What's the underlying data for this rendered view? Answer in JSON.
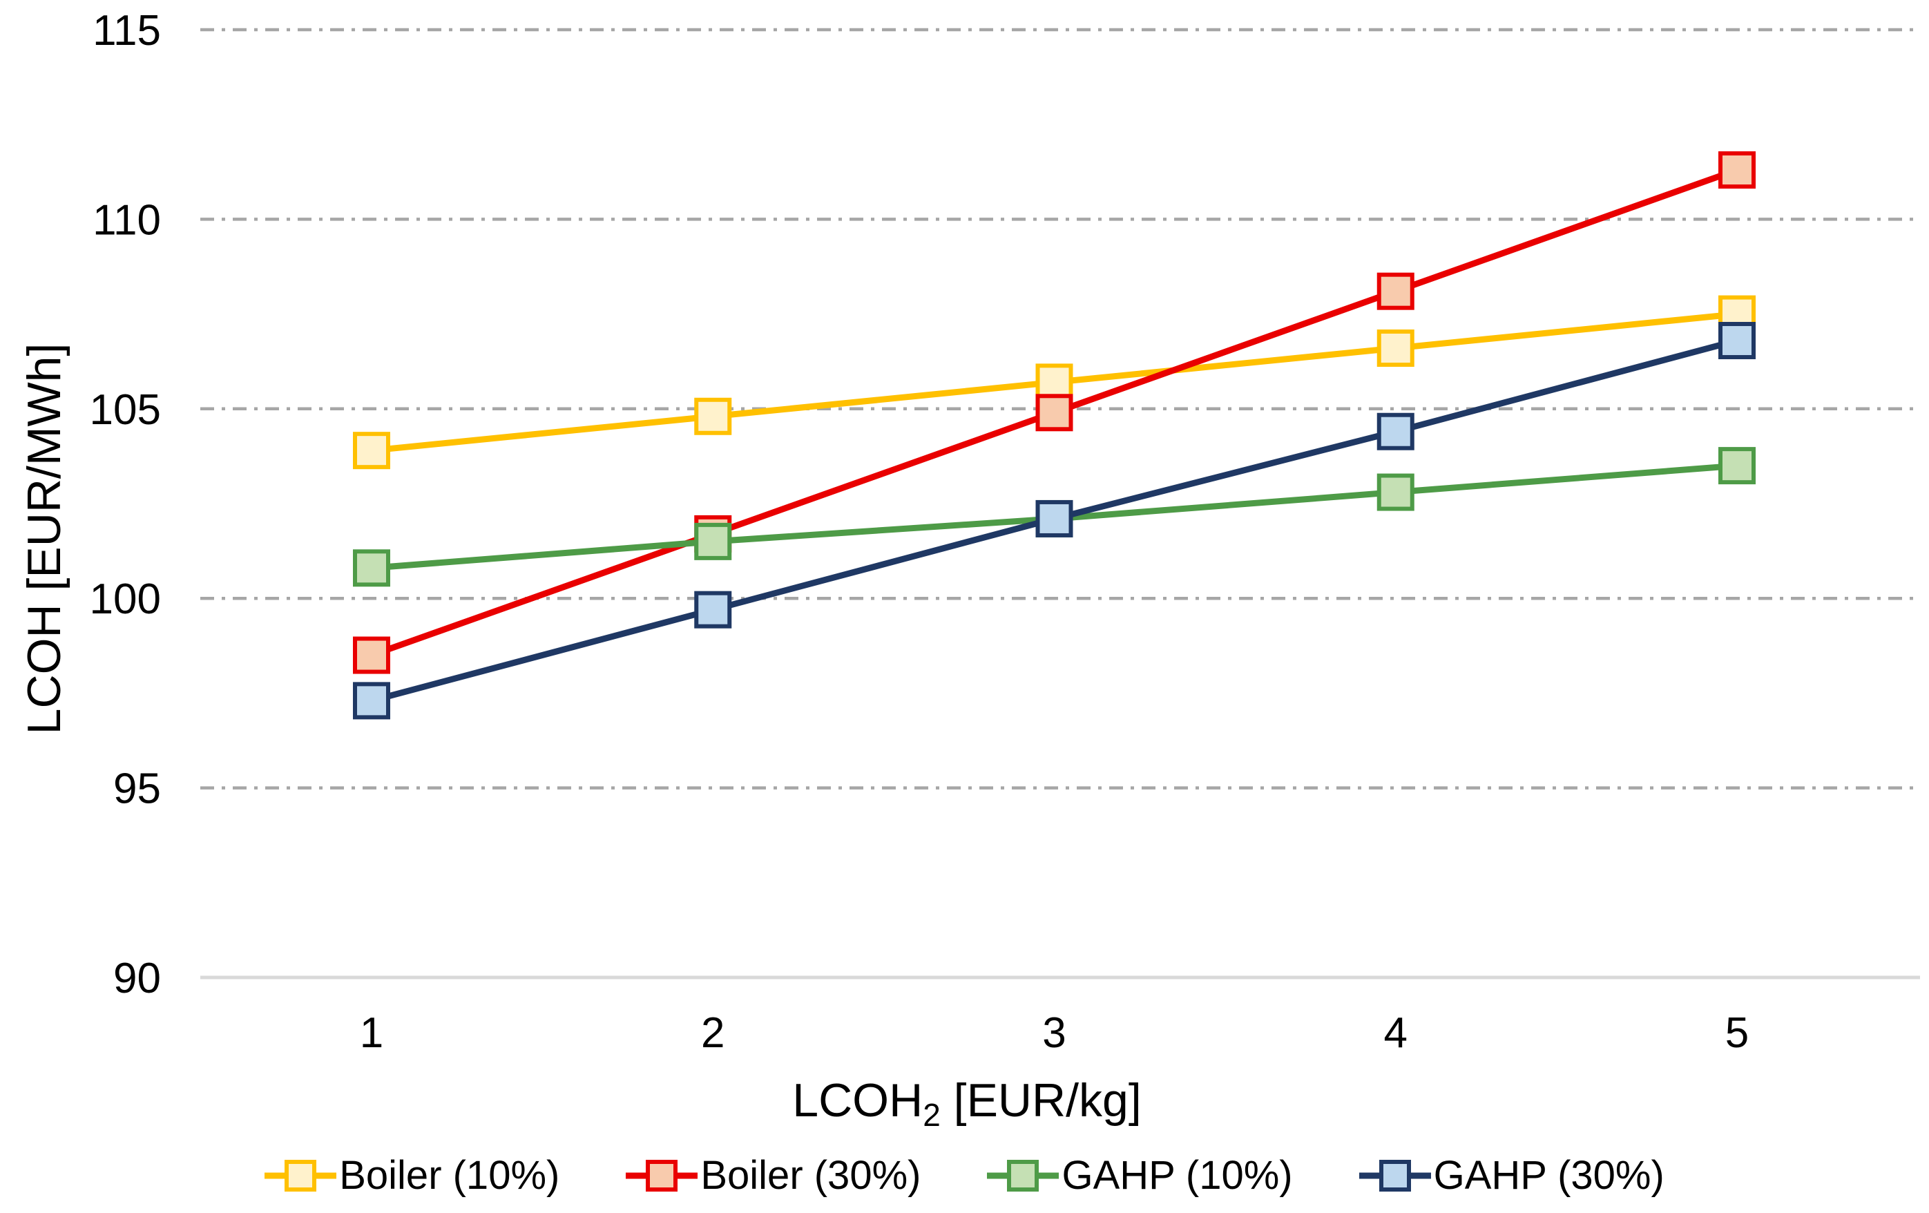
{
  "chart_data": {
    "type": "line",
    "title": "",
    "xlabel_main": "LCOH",
    "xlabel_sub": "2",
    "xlabel_rest": " [EUR/kg]",
    "ylabel": "LCOH [EUR/MWh]",
    "x": [
      1,
      2,
      3,
      4,
      5
    ],
    "xticks": [
      1,
      2,
      3,
      4,
      5
    ],
    "yticks": [
      90,
      95,
      100,
      105,
      110,
      115
    ],
    "ylim": [
      90,
      115
    ],
    "xlim_categories": [
      1,
      5
    ],
    "grid": "horizontal dash-dot gridlines at every 5 EUR/MWh",
    "legend_position": "bottom",
    "gridline_color": "#A6A6A6",
    "axis_line_color": "#D9D9D9",
    "background_color": "#FFFFFF",
    "marker_shape": "square",
    "series": [
      {
        "name": "Boiler (10%)",
        "line_color": "#FFC000",
        "marker_fill": "#FFF2CC",
        "values": [
          103.9,
          104.8,
          105.7,
          106.6,
          107.5
        ]
      },
      {
        "name": "Boiler (30%)",
        "line_color": "#E90000",
        "marker_fill": "#F8CBAD",
        "values": [
          98.5,
          101.7,
          104.9,
          108.1,
          111.3
        ]
      },
      {
        "name": "GAHP (10%)",
        "line_color": "#4E9B47",
        "marker_fill": "#C5E0B4",
        "values": [
          100.8,
          101.5,
          102.1,
          102.8,
          103.5
        ]
      },
      {
        "name": "GAHP (30%)",
        "line_color": "#1F3864",
        "marker_fill": "#BDD7EE",
        "values": [
          97.3,
          99.7,
          102.1,
          104.4,
          106.8
        ]
      }
    ]
  }
}
